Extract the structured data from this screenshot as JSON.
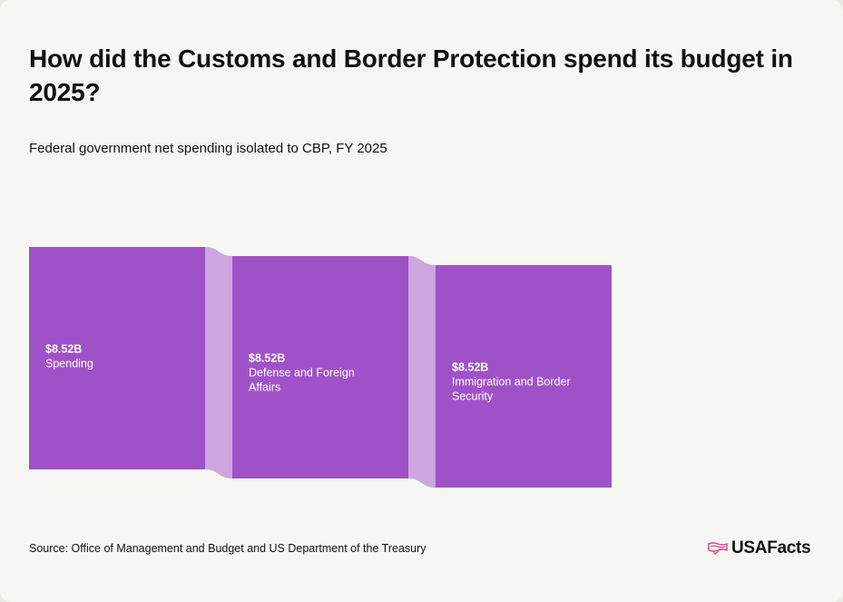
{
  "header": {
    "title": "How did the Customs and Border Protection spend its budget in 2025?",
    "subtitle": "Federal government net spending isolated to CBP, FY 2025"
  },
  "footer": {
    "source": "Source: Office of Management and Budget and US Department of the Treasury",
    "brand": "USAFacts",
    "brand_icon": "us-map-flag-icon"
  },
  "colors": {
    "background": "#f6f6f2",
    "node": "#9f52c7",
    "link": "#cda5df",
    "text": "#111111",
    "brand_accent": "#e63e86"
  },
  "chart_data": {
    "type": "sankey",
    "unit": "$B",
    "nodes": [
      {
        "id": "spending",
        "level": 0,
        "value_label": "$8.52B",
        "name_lines": [
          "Spending"
        ],
        "value": 8.52
      },
      {
        "id": "defense",
        "level": 1,
        "value_label": "$8.52B",
        "name_lines": [
          "Defense and Foreign",
          "Affairs"
        ],
        "value": 8.52
      },
      {
        "id": "immigration",
        "level": 2,
        "value_label": "$8.52B",
        "name_lines": [
          "Immigration and Border",
          "Security"
        ],
        "value": 8.52
      }
    ],
    "links": [
      {
        "source": "spending",
        "target": "defense",
        "value": 8.52
      },
      {
        "source": "defense",
        "target": "immigration",
        "value": 8.52
      }
    ]
  }
}
